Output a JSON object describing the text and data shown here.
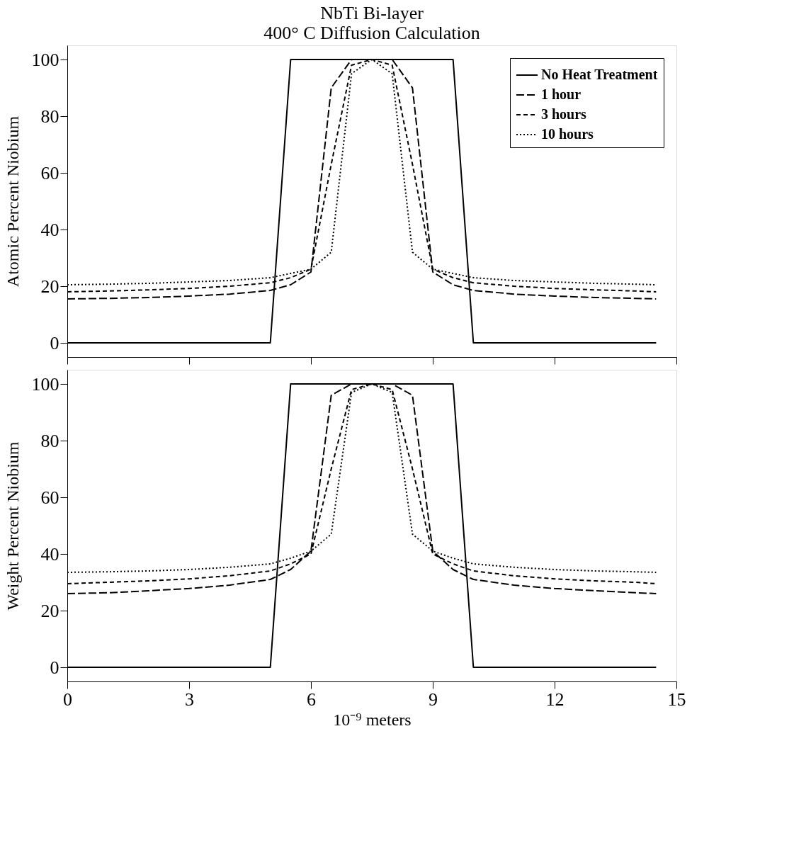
{
  "chart_data": [
    {
      "type": "line",
      "title": [
        "NbTi Bi-layer",
        "400° C Diffusion Calculation"
      ],
      "ylabel": "Atomic Percent Niobium",
      "xlim": [
        0,
        15
      ],
      "xticks": [
        0,
        3,
        6,
        9,
        12,
        15
      ],
      "ylim": [
        -5,
        105
      ],
      "yticks": [
        0,
        20,
        40,
        60,
        80,
        100
      ],
      "tick_labels": "y",
      "legend": "top right",
      "grid": false,
      "series": [
        {
          "name": "No Heat Treatment",
          "color": "#000000",
          "line_style": "solid",
          "x": [
            0,
            5,
            5.5,
            9.5,
            10,
            14.5
          ],
          "values": [
            0,
            0,
            100,
            100,
            0,
            0
          ]
        },
        {
          "name": "1 hour",
          "color": "#000000",
          "line_style": "dashed",
          "x": [
            0,
            1,
            2,
            3,
            4,
            5,
            5.5,
            6,
            6.5,
            7,
            7.5,
            8,
            8.5,
            9,
            9.5,
            10,
            11,
            12,
            13,
            14,
            14.5
          ],
          "values": [
            15.5,
            15.7,
            16,
            16.5,
            17.2,
            18.5,
            20.5,
            25,
            90,
            100,
            100,
            100,
            90,
            25,
            20.5,
            18.5,
            17.2,
            16.5,
            16,
            15.7,
            15.5
          ]
        },
        {
          "name": "3 hours",
          "color": "#000000",
          "line_style": "dashed",
          "x": [
            0,
            1,
            2,
            3,
            4,
            5,
            5.5,
            6,
            6.5,
            7,
            7.5,
            8,
            8.5,
            9,
            9.5,
            10,
            11,
            12,
            13,
            14,
            14.5
          ],
          "values": [
            18,
            18.3,
            18.7,
            19.2,
            20,
            21.2,
            23,
            26,
            63,
            98,
            100,
            98,
            63,
            26,
            23,
            21.2,
            20,
            19.2,
            18.7,
            18.3,
            18
          ]
        },
        {
          "name": "10 hours",
          "color": "#000000",
          "line_style": "dotted",
          "x": [
            0,
            1,
            2,
            3,
            4,
            5,
            5.5,
            6,
            6.5,
            7,
            7.5,
            8,
            8.5,
            9,
            9.5,
            10,
            11,
            12,
            13,
            14,
            14.5
          ],
          "values": [
            20.5,
            20.7,
            21,
            21.5,
            22,
            23,
            24.5,
            26,
            32,
            95,
            100,
            95,
            32,
            26,
            24.5,
            23,
            22,
            21.5,
            21,
            20.7,
            20.5
          ]
        }
      ]
    },
    {
      "type": "line",
      "xlabel": "10⁻⁹ meters",
      "ylabel": "Weight Percent Niobium",
      "xlim": [
        0,
        15
      ],
      "xticks": [
        0,
        3,
        6,
        9,
        12,
        15
      ],
      "ylim": [
        -5,
        105
      ],
      "yticks": [
        0,
        20,
        40,
        60,
        80,
        100
      ],
      "legend": false,
      "grid": false,
      "series": [
        {
          "color": "#000000",
          "line_style": "solid",
          "x": [
            0,
            5,
            5.5,
            9.5,
            10,
            14.5
          ],
          "values": [
            0,
            0,
            100,
            100,
            0,
            0
          ]
        },
        {
          "color": "#000000",
          "line_style": "dashed",
          "x": [
            0,
            1,
            2,
            3,
            4,
            5,
            5.5,
            6,
            6.5,
            7,
            7.5,
            8,
            8.5,
            9,
            9.5,
            10,
            11,
            12,
            13,
            14,
            14.5
          ],
          "values": [
            26,
            26.3,
            27,
            27.8,
            29,
            31,
            34.5,
            41,
            96,
            100,
            100,
            100,
            96,
            41,
            34.5,
            31,
            29,
            27.8,
            27,
            26.3,
            26
          ]
        },
        {
          "color": "#000000",
          "line_style": "dashed",
          "x": [
            0,
            1,
            2,
            3,
            4,
            5,
            5.5,
            6,
            6.5,
            7,
            7.5,
            8,
            8.5,
            9,
            9.5,
            10,
            11,
            12,
            13,
            14,
            14.5
          ],
          "values": [
            29.5,
            30,
            30.5,
            31.2,
            32.3,
            34,
            36.5,
            40,
            70,
            98,
            100,
            98,
            70,
            40,
            36.5,
            34,
            32.3,
            31.2,
            30.5,
            30,
            29.5
          ]
        },
        {
          "color": "#000000",
          "line_style": "dotted",
          "x": [
            0,
            1,
            2,
            3,
            4,
            5,
            5.5,
            6,
            6.5,
            7,
            7.5,
            8,
            8.5,
            9,
            9.5,
            10,
            11,
            12,
            13,
            14,
            14.5
          ],
          "values": [
            33.5,
            33.7,
            34,
            34.5,
            35.3,
            36.5,
            38.5,
            41,
            47,
            97,
            100,
            97,
            47,
            41,
            38.5,
            36.5,
            35.3,
            34.5,
            34,
            33.7,
            33.5
          ]
        }
      ]
    }
  ]
}
